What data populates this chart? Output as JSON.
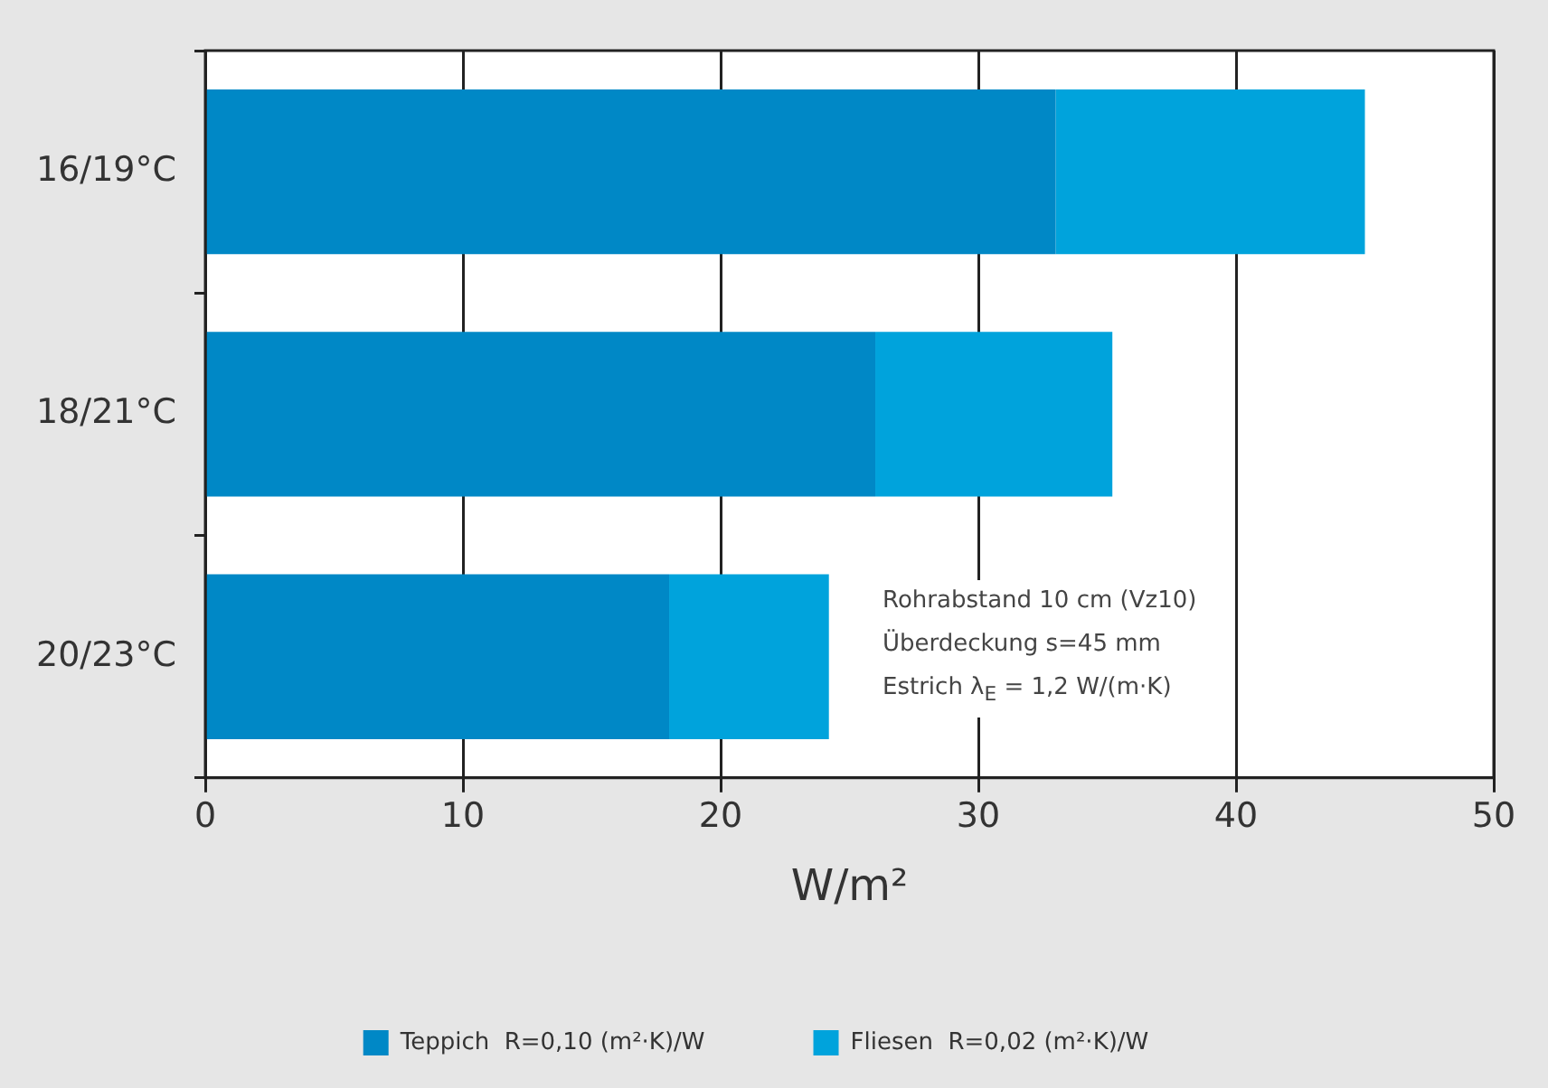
{
  "chart_data": {
    "type": "bar",
    "orientation": "horizontal",
    "stacked": true,
    "categories": [
      "16/19°C",
      "18/21°C",
      "20/23°C"
    ],
    "series": [
      {
        "name": "Teppich  R=0,10 (m²·K)/W",
        "color": "#0088c6",
        "values": [
          33,
          26,
          18
        ]
      },
      {
        "name": "Fliesen  R=0,02 (m²·K)/W",
        "color": "#00a3dc",
        "values": [
          12,
          9.2,
          6.2
        ]
      }
    ],
    "xlim": [
      0,
      50
    ],
    "xticks": [
      0,
      10,
      20,
      30,
      40,
      50
    ],
    "xlabel": "W/m²",
    "grid": "x",
    "legend": "bottom",
    "annotations": [
      "Rohrabstand 10 cm (Vz10)",
      "Überdeckung s=45 mm",
      "Estrich λ$_{E}$ = 1,2 W/(m·K)"
    ]
  }
}
